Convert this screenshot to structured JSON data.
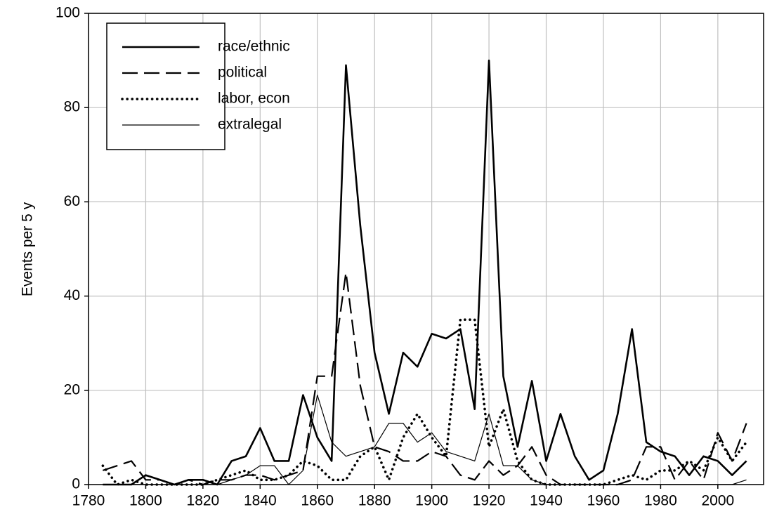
{
  "chart_data": {
    "type": "line",
    "y_label": "Events per 5 y",
    "x": [
      1785,
      1790,
      1795,
      1800,
      1805,
      1810,
      1815,
      1820,
      1825,
      1830,
      1835,
      1840,
      1845,
      1850,
      1855,
      1860,
      1865,
      1870,
      1875,
      1880,
      1885,
      1890,
      1895,
      1900,
      1905,
      1910,
      1915,
      1920,
      1925,
      1930,
      1935,
      1940,
      1945,
      1950,
      1955,
      1960,
      1965,
      1970,
      1975,
      1980,
      1985,
      1990,
      1995,
      2000,
      2005,
      2010
    ],
    "series": [
      {
        "name": "race/ethnic",
        "color": "#000000",
        "style": "solid",
        "values": [
          0,
          0,
          0,
          2,
          1,
          0,
          1,
          1,
          0,
          5,
          6,
          12,
          5,
          5,
          19,
          10,
          5,
          89,
          55,
          28,
          15,
          28,
          25,
          32,
          31,
          33,
          16,
          90,
          23,
          8,
          22,
          5,
          15,
          6,
          1,
          3,
          15,
          33,
          9,
          7,
          6,
          2,
          6,
          5,
          2,
          5
        ]
      },
      {
        "name": "political",
        "color": "#000000",
        "style": "dashed",
        "values": [
          3,
          4,
          5,
          1,
          1,
          0,
          1,
          0,
          1,
          1,
          2,
          2,
          1,
          2,
          3,
          23,
          23,
          45,
          21,
          8,
          7,
          5,
          5,
          7,
          6,
          2,
          1,
          5,
          2,
          4,
          8,
          2,
          0,
          0,
          0,
          0,
          0,
          1,
          8,
          8,
          1,
          5,
          1,
          11,
          5,
          13
        ]
      },
      {
        "name": "labor, econ",
        "color": "#000000",
        "style": "dotted",
        "values": [
          4,
          0,
          1,
          0,
          0,
          0,
          0,
          0,
          1,
          2,
          3,
          1,
          1,
          2,
          5,
          4,
          1,
          1,
          6,
          8,
          1,
          10,
          15,
          10,
          6,
          35,
          35,
          8,
          16,
          5,
          1,
          0,
          0,
          0,
          0,
          0,
          1,
          2,
          1,
          3,
          3,
          5,
          3,
          10,
          5,
          9
        ]
      },
      {
        "name": "extralegal",
        "color": "#000000",
        "style": "thin",
        "values": [
          0,
          0,
          0,
          0,
          0,
          0,
          0,
          0,
          0,
          1,
          2,
          4,
          4,
          0,
          3,
          19,
          9,
          6,
          7,
          8,
          13,
          13,
          9,
          11,
          7,
          6,
          5,
          15,
          4,
          4,
          1,
          0,
          0,
          0,
          0,
          0,
          0,
          0,
          0,
          0,
          0,
          0,
          0,
          0,
          0,
          1
        ]
      }
    ],
    "xlim": [
      1780,
      2016
    ],
    "ylim": [
      0,
      100
    ],
    "xticks": [
      1780,
      1800,
      1820,
      1840,
      1860,
      1880,
      1900,
      1920,
      1940,
      1960,
      1980,
      2000
    ],
    "yticks": [
      0,
      20,
      40,
      60,
      80,
      100
    ],
    "grid": true,
    "legend": "upper-left"
  }
}
